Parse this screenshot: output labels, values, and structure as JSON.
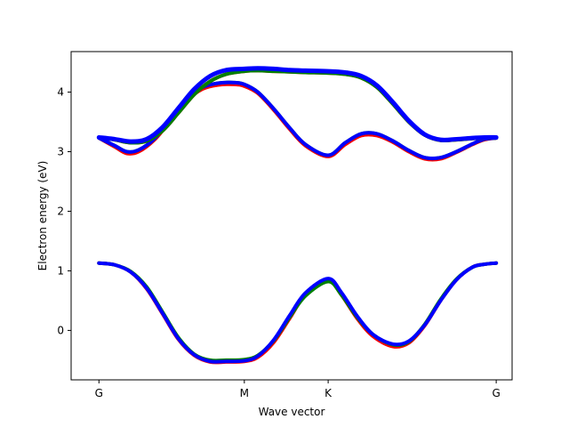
{
  "chart_data": {
    "type": "line",
    "title": "",
    "xlabel": "Wave vector",
    "ylabel": "Electron energy (eV)",
    "xlim": [
      -0.07,
      1.04
    ],
    "ylim": [
      -0.83,
      4.68
    ],
    "x_ticks": [
      {
        "pos": 0.0,
        "label": "G"
      },
      {
        "pos": 0.366,
        "label": "M"
      },
      {
        "pos": 0.577,
        "label": "K"
      },
      {
        "pos": 1.0,
        "label": "G"
      }
    ],
    "y_ticks": [
      0,
      1,
      2,
      3,
      4
    ],
    "grid": false,
    "legend": false,
    "bands": [
      {
        "index": 1,
        "x": [
          0.0,
          0.04,
          0.08,
          0.12,
          0.16,
          0.2,
          0.24,
          0.28,
          0.32,
          0.366,
          0.4,
          0.44,
          0.48,
          0.52,
          0.577,
          0.61,
          0.65,
          0.69,
          0.74,
          0.78,
          0.82,
          0.86,
          0.9,
          0.94,
          0.97,
          1.0
        ],
        "red": [
          1.13,
          1.1,
          0.98,
          0.7,
          0.28,
          -0.15,
          -0.42,
          -0.53,
          -0.53,
          -0.52,
          -0.45,
          -0.2,
          0.2,
          0.6,
          0.84,
          0.6,
          0.2,
          -0.1,
          -0.27,
          -0.21,
          0.08,
          0.5,
          0.85,
          1.06,
          1.11,
          1.13
        ],
        "green": [
          1.13,
          1.1,
          0.99,
          0.73,
          0.31,
          -0.12,
          -0.4,
          -0.5,
          -0.5,
          -0.49,
          -0.42,
          -0.17,
          0.22,
          0.58,
          0.82,
          0.6,
          0.22,
          -0.07,
          -0.24,
          -0.19,
          0.1,
          0.52,
          0.86,
          1.06,
          1.11,
          1.13
        ],
        "blue": [
          1.13,
          1.1,
          0.98,
          0.71,
          0.29,
          -0.14,
          -0.41,
          -0.52,
          -0.52,
          -0.51,
          -0.43,
          -0.16,
          0.25,
          0.63,
          0.87,
          0.64,
          0.24,
          -0.07,
          -0.23,
          -0.18,
          0.09,
          0.5,
          0.85,
          1.06,
          1.11,
          1.13
        ]
      },
      {
        "index": 2,
        "x": [
          0.0,
          0.04,
          0.07,
          0.1,
          0.14,
          0.18,
          0.22,
          0.26,
          0.3,
          0.34,
          0.366,
          0.4,
          0.44,
          0.48,
          0.52,
          0.577,
          0.62,
          0.66,
          0.7,
          0.74,
          0.78,
          0.82,
          0.86,
          0.9,
          0.94,
          0.97,
          1.0
        ],
        "red": [
          3.23,
          3.08,
          2.97,
          3.0,
          3.2,
          3.52,
          3.85,
          4.05,
          4.12,
          4.13,
          4.1,
          3.98,
          3.7,
          3.38,
          3.1,
          2.92,
          3.12,
          3.27,
          3.27,
          3.16,
          3.0,
          2.88,
          2.88,
          2.99,
          3.12,
          3.2,
          3.23
        ],
        "green": [
          3.23,
          3.1,
          3.0,
          3.03,
          3.22,
          3.55,
          3.88,
          4.08,
          4.15,
          4.16,
          4.13,
          4.0,
          3.72,
          3.4,
          3.12,
          2.94,
          3.15,
          3.3,
          3.3,
          3.18,
          3.02,
          2.9,
          2.9,
          3.0,
          3.13,
          3.21,
          3.23
        ],
        "blue": [
          3.23,
          3.1,
          3.0,
          3.03,
          3.22,
          3.55,
          3.88,
          4.08,
          4.15,
          4.16,
          4.13,
          4.0,
          3.72,
          3.4,
          3.12,
          2.94,
          3.15,
          3.3,
          3.3,
          3.18,
          3.02,
          2.9,
          2.9,
          3.0,
          3.13,
          3.21,
          3.23
        ]
      },
      {
        "index": 3,
        "x": [
          0.0,
          0.04,
          0.08,
          0.12,
          0.16,
          0.2,
          0.24,
          0.28,
          0.32,
          0.366,
          0.4,
          0.44,
          0.48,
          0.52,
          0.577,
          0.62,
          0.66,
          0.7,
          0.74,
          0.78,
          0.82,
          0.86,
          0.9,
          0.94,
          0.97,
          1.0
        ],
        "red": [
          3.24,
          3.2,
          3.15,
          3.18,
          3.35,
          3.65,
          3.96,
          4.18,
          4.3,
          4.35,
          4.36,
          4.35,
          4.34,
          4.33,
          4.32,
          4.3,
          4.24,
          4.08,
          3.8,
          3.5,
          3.28,
          3.19,
          3.2,
          3.22,
          3.23,
          3.24
        ],
        "green": [
          3.24,
          3.2,
          3.15,
          3.18,
          3.35,
          3.65,
          3.96,
          4.18,
          4.3,
          4.35,
          4.36,
          4.35,
          4.34,
          4.33,
          4.32,
          4.3,
          4.24,
          4.08,
          3.8,
          3.5,
          3.28,
          3.19,
          3.2,
          3.22,
          3.23,
          3.24
        ],
        "blue": [
          3.24,
          3.21,
          3.17,
          3.21,
          3.41,
          3.73,
          4.05,
          4.27,
          4.37,
          4.39,
          4.4,
          4.39,
          4.37,
          4.36,
          4.35,
          4.33,
          4.27,
          4.11,
          3.83,
          3.52,
          3.29,
          3.2,
          3.21,
          3.23,
          3.24,
          3.24
        ]
      }
    ],
    "colors": {
      "red": "#ff0000",
      "green": "#008000",
      "blue": "#0000ff",
      "axis": "#000000",
      "background": "#ffffff"
    }
  }
}
